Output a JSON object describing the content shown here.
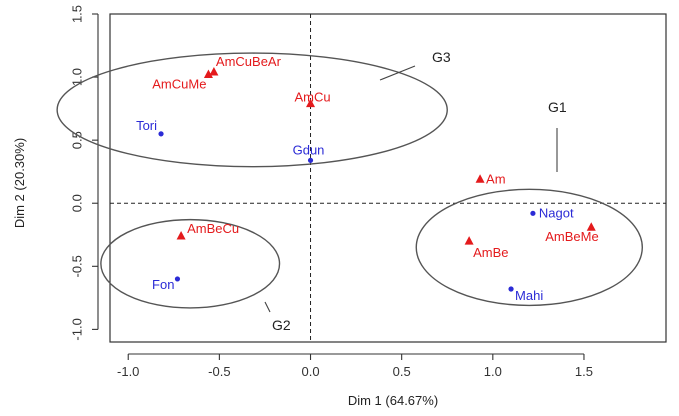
{
  "chart_data": {
    "type": "scatter",
    "title": "",
    "xlabel": "Dim 1 (64.67%)",
    "ylabel": "Dim 2 (20.30%)",
    "xlim": [
      -1.1,
      1.95
    ],
    "ylim": [
      -1.1,
      1.5
    ],
    "x_ticks": [
      -1.0,
      -0.5,
      0.0,
      0.5,
      1.0,
      1.5
    ],
    "x_tick_labels": [
      "-1.0",
      "-0.5",
      "0.0",
      "0.5",
      "1.0",
      "1.5"
    ],
    "y_ticks": [
      -1.0,
      -0.5,
      0.0,
      0.5,
      1.0,
      1.5
    ],
    "y_tick_labels": [
      "-1.0",
      "-0.5",
      "0.0",
      "0.5",
      "1.0",
      "1.5"
    ],
    "reference_lines": {
      "x": 0,
      "y": 0,
      "style": "dashed"
    },
    "grid": false,
    "colors": {
      "red_series": "#e41a1c",
      "blue_series": "#2b2bd6",
      "ellipse": "#555555",
      "axis": "#333333"
    },
    "series": [
      {
        "marker": "triangle",
        "color": "#e41a1c",
        "points": [
          {
            "label": "AmCuBeAr",
            "x": -0.53,
            "y": 1.04
          },
          {
            "label": "AmCuMe",
            "x": -0.56,
            "y": 1.02
          },
          {
            "label": "AmCu",
            "x": 0.0,
            "y": 0.79
          },
          {
            "label": "AmBeCu",
            "x": -0.71,
            "y": -0.26
          },
          {
            "label": "Am",
            "x": 0.93,
            "y": 0.19
          },
          {
            "label": "AmBeMe",
            "x": 1.54,
            "y": -0.19
          },
          {
            "label": "AmBe",
            "x": 0.87,
            "y": -0.3
          }
        ]
      },
      {
        "marker": "dot",
        "color": "#2b2bd6",
        "points": [
          {
            "label": "Tori",
            "x": -0.82,
            "y": 0.55
          },
          {
            "label": "Gdun",
            "x": 0.0,
            "y": 0.34
          },
          {
            "label": "Fon",
            "x": -0.73,
            "y": -0.6
          },
          {
            "label": "Nagot",
            "x": 1.22,
            "y": -0.08
          },
          {
            "label": "Mahi",
            "x": 1.1,
            "y": -0.68
          }
        ]
      }
    ],
    "groups": [
      {
        "label": "G1",
        "center": [
          1.2,
          -0.35
        ],
        "semi_axes": [
          0.62,
          0.46
        ]
      },
      {
        "label": "G2",
        "center": [
          -0.66,
          -0.48
        ],
        "semi_axes": [
          0.49,
          0.35
        ]
      },
      {
        "label": "G3",
        "center": [
          -0.32,
          0.74
        ],
        "semi_axes": [
          1.07,
          0.45
        ]
      }
    ]
  }
}
